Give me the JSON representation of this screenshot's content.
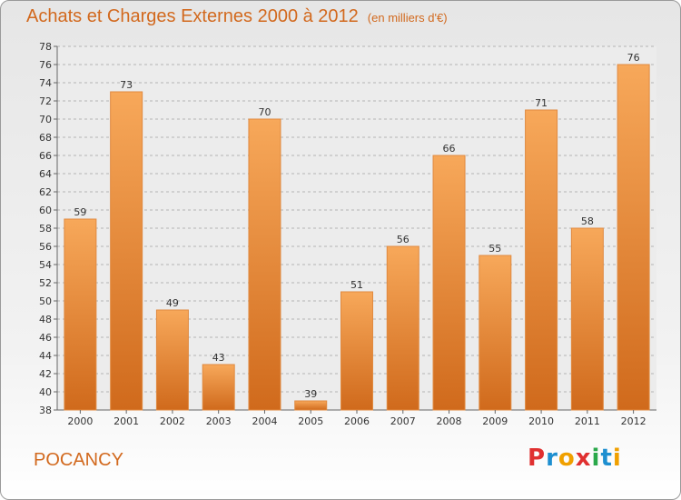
{
  "header": {
    "title": "Achats et Charges Externes 2000 à 2012",
    "subtitle": "(en milliers d'€)"
  },
  "footer": {
    "commune": "POCANCY",
    "logo": {
      "letters": [
        "P",
        "r",
        "o",
        "x",
        "i",
        "t",
        "i"
      ],
      "colors": [
        "#e03030",
        "#1e8fd0",
        "#f0a000",
        "#e03030",
        "#2aa84a",
        "#1e8fd0",
        "#f0a000"
      ]
    }
  },
  "colors": {
    "bar_light": "#f7a85a",
    "bar_dark": "#d06a1c",
    "accent": "#d2691e"
  },
  "chart_data": {
    "type": "bar",
    "title": "Achats et Charges Externes 2000 à 2012",
    "subtitle": "(en milliers d'€)",
    "categories": [
      "2000",
      "2001",
      "2002",
      "2003",
      "2004",
      "2005",
      "2006",
      "2007",
      "2008",
      "2009",
      "2010",
      "2011",
      "2012"
    ],
    "values": [
      59,
      73,
      49,
      43,
      70,
      39,
      51,
      56,
      66,
      55,
      71,
      58,
      76
    ],
    "ylim": [
      38,
      78
    ],
    "yticks": [
      38,
      40,
      42,
      44,
      46,
      48,
      50,
      52,
      54,
      56,
      58,
      60,
      62,
      64,
      66,
      68,
      70,
      72,
      74,
      76,
      78
    ],
    "grid": true
  }
}
